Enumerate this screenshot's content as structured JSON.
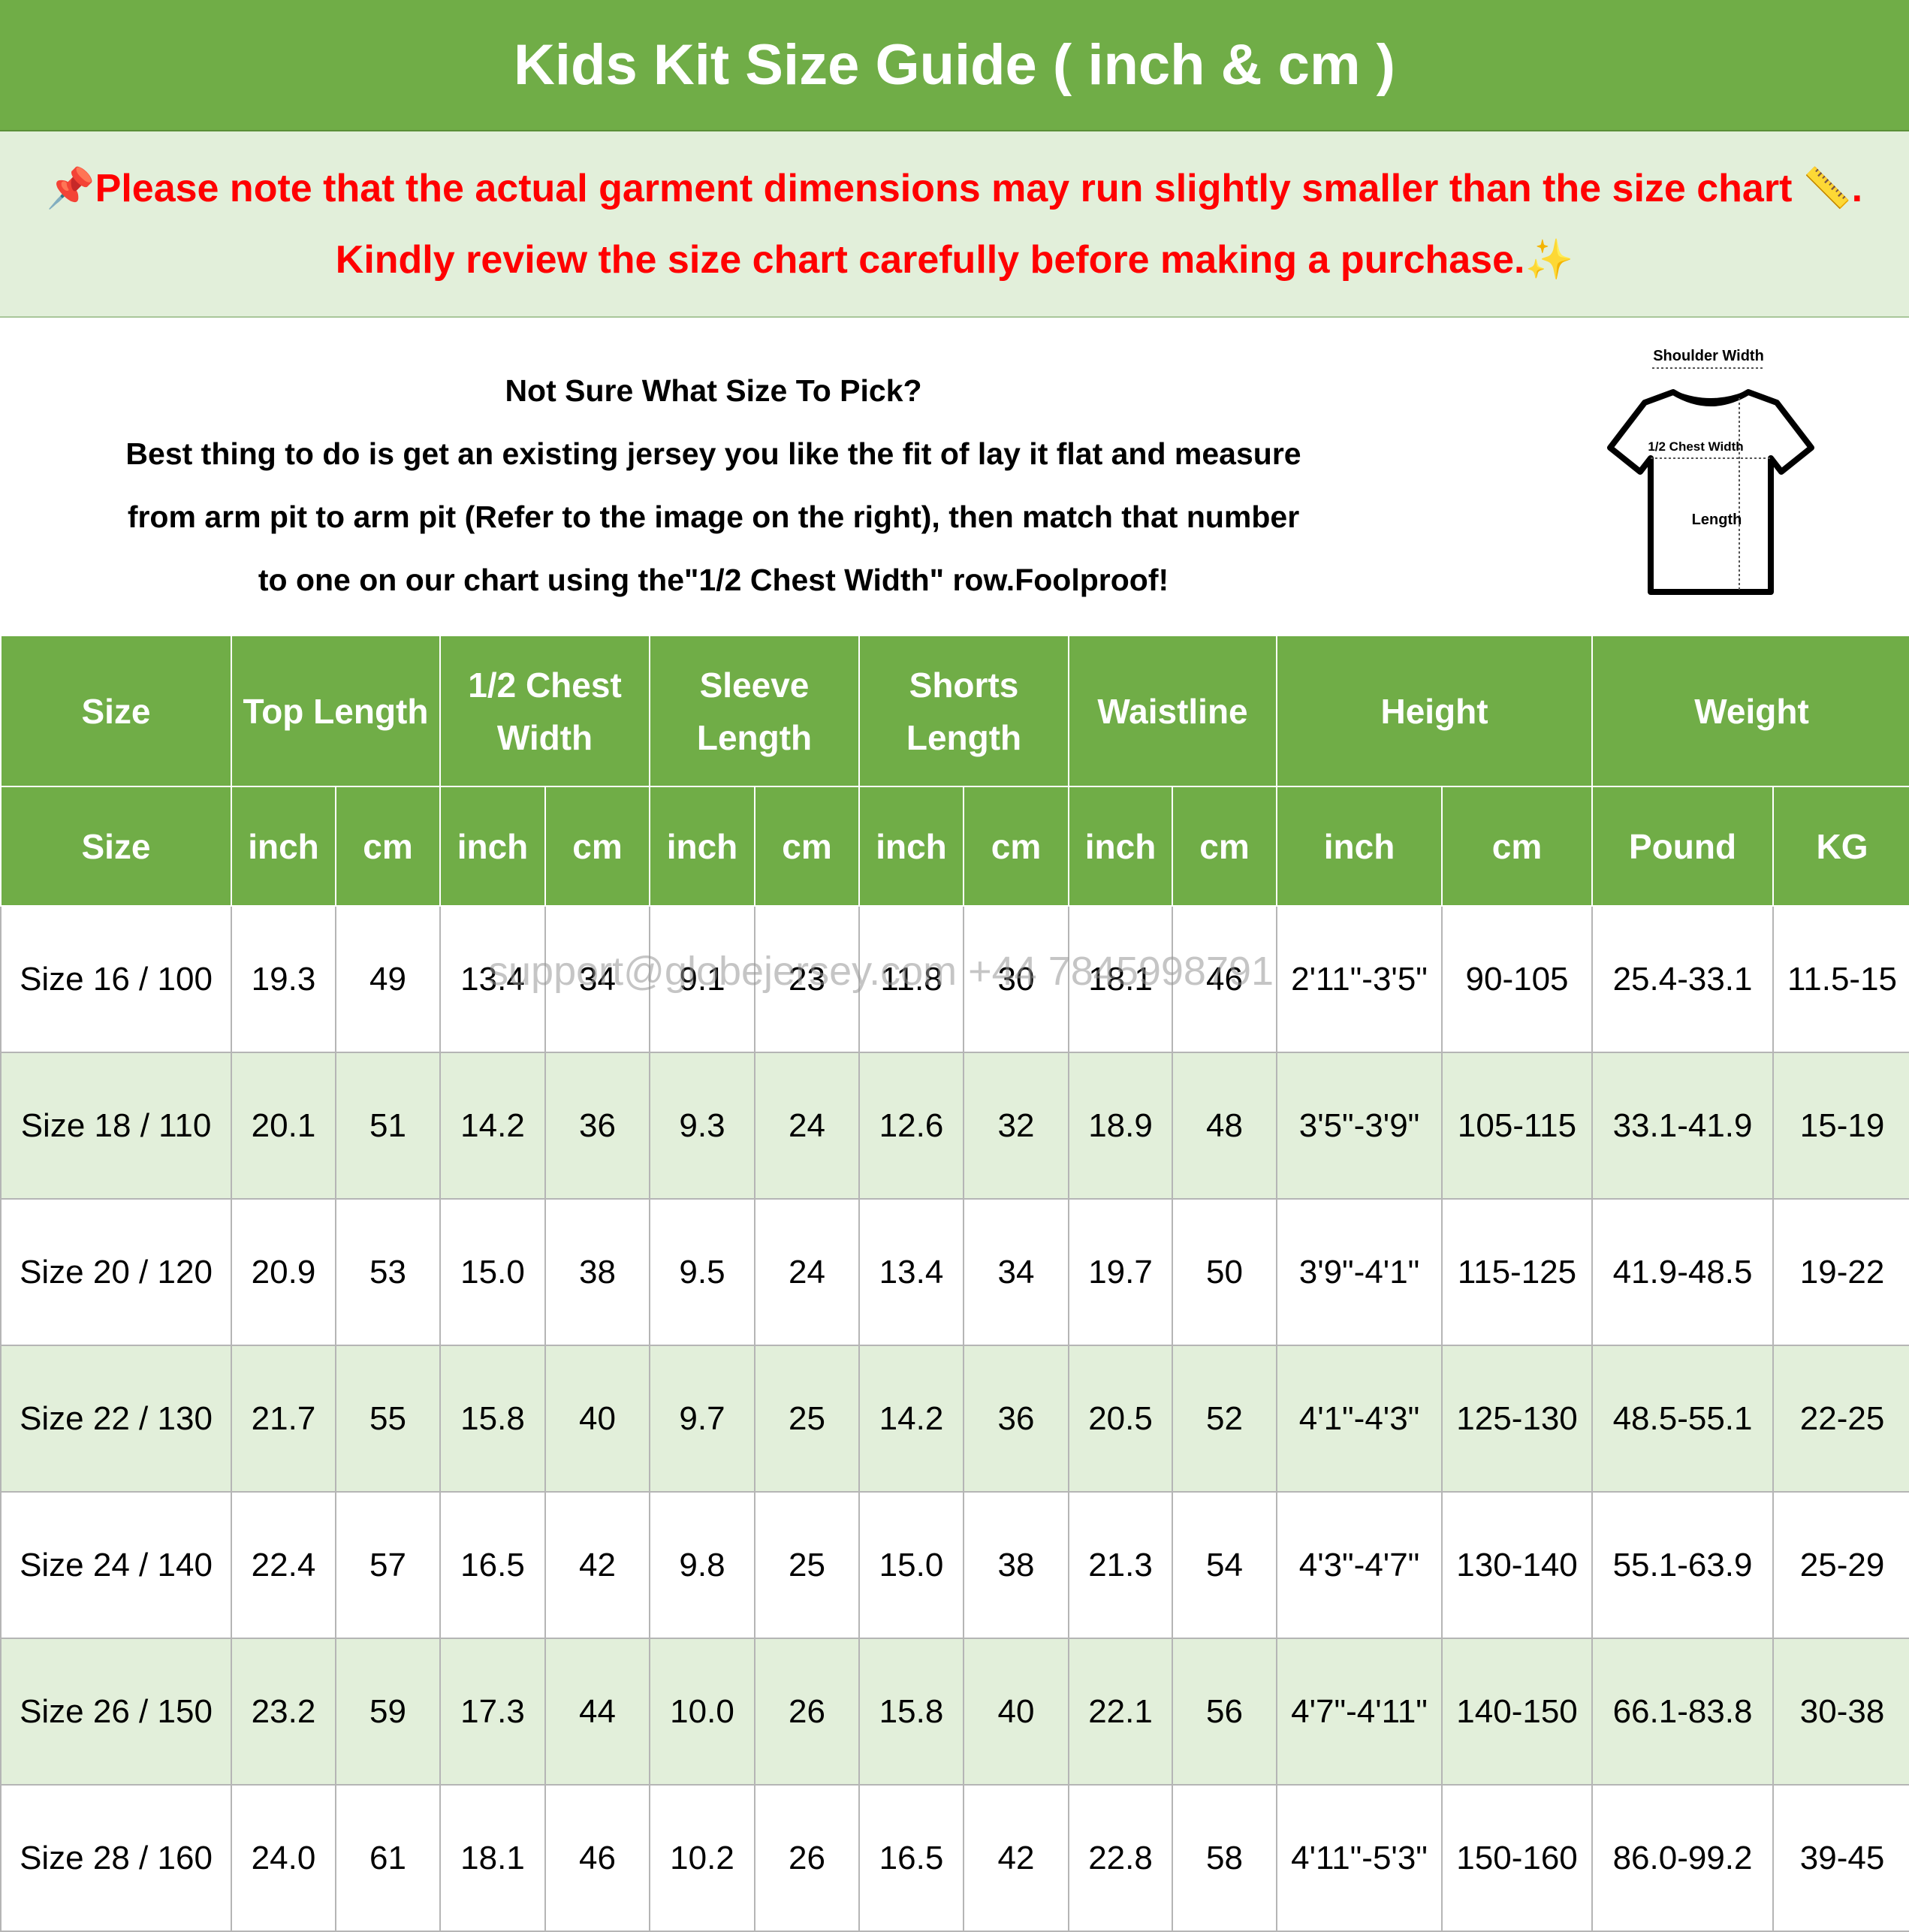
{
  "header": {
    "title": "Kids Kit Size Guide ( inch & cm )"
  },
  "notice": {
    "lines": [
      "📌Please note that the actual garment dimensions may run slightly smaller than the size chart 📏.",
      "Kindly review the size chart carefully before making a purchase.✨"
    ]
  },
  "info": {
    "question": "Not Sure What Size To Pick?",
    "lines": [
      "Best thing to do is get an existing jersey you like the fit of lay it flat and measure",
      "from arm pit to arm pit (Refer to the image on the right), then match that number",
      "to one on our chart using the\"1/2 Chest Width\" row.Foolproof!"
    ]
  },
  "diagram": {
    "shoulder": "Shoulder Width",
    "chest": "1/2 Chest Width",
    "length": "Length"
  },
  "watermark": "support@globejersey.com    +44 7845998791",
  "table": {
    "header_groups": [
      "Size",
      "Top Length",
      "1/2 Chest Width",
      "Sleeve Length",
      "Shorts Length",
      "Waistline",
      "Height",
      "Weight"
    ],
    "units": [
      "Size",
      "inch",
      "cm",
      "inch",
      "cm",
      "inch",
      "cm",
      "inch",
      "cm",
      "inch",
      "cm",
      "inch",
      "cm",
      "Pound",
      "KG"
    ],
    "rows": [
      [
        "Size 16 / 100",
        "19.3",
        "49",
        "13.4",
        "34",
        "9.1",
        "23",
        "11.8",
        "30",
        "18.1",
        "46",
        "2'11\"-3'5\"",
        "90-105",
        "25.4-33.1",
        "11.5-15"
      ],
      [
        "Size 18 / 110",
        "20.1",
        "51",
        "14.2",
        "36",
        "9.3",
        "24",
        "12.6",
        "32",
        "18.9",
        "48",
        "3'5\"-3'9\"",
        "105-115",
        "33.1-41.9",
        "15-19"
      ],
      [
        "Size 20 / 120",
        "20.9",
        "53",
        "15.0",
        "38",
        "9.5",
        "24",
        "13.4",
        "34",
        "19.7",
        "50",
        "3'9\"-4'1\"",
        "115-125",
        "41.9-48.5",
        "19-22"
      ],
      [
        "Size 22 / 130",
        "21.7",
        "55",
        "15.8",
        "40",
        "9.7",
        "25",
        "14.2",
        "36",
        "20.5",
        "52",
        "4'1\"-4'3\"",
        "125-130",
        "48.5-55.1",
        "22-25"
      ],
      [
        "Size 24 / 140",
        "22.4",
        "57",
        "16.5",
        "42",
        "9.8",
        "25",
        "15.0",
        "38",
        "21.3",
        "54",
        "4'3\"-4'7\"",
        "130-140",
        "55.1-63.9",
        "25-29"
      ],
      [
        "Size 26 / 150",
        "23.2",
        "59",
        "17.3",
        "44",
        "10.0",
        "26",
        "15.8",
        "40",
        "22.1",
        "56",
        "4'7\"-4'11\"",
        "140-150",
        "66.1-83.8",
        "30-38"
      ],
      [
        "Size 28 / 160",
        "24.0",
        "61",
        "18.1",
        "46",
        "10.2",
        "26",
        "16.5",
        "42",
        "22.8",
        "58",
        "4'11\"-5'3\"",
        "150-160",
        "86.0-99.2",
        "39-45"
      ]
    ]
  }
}
